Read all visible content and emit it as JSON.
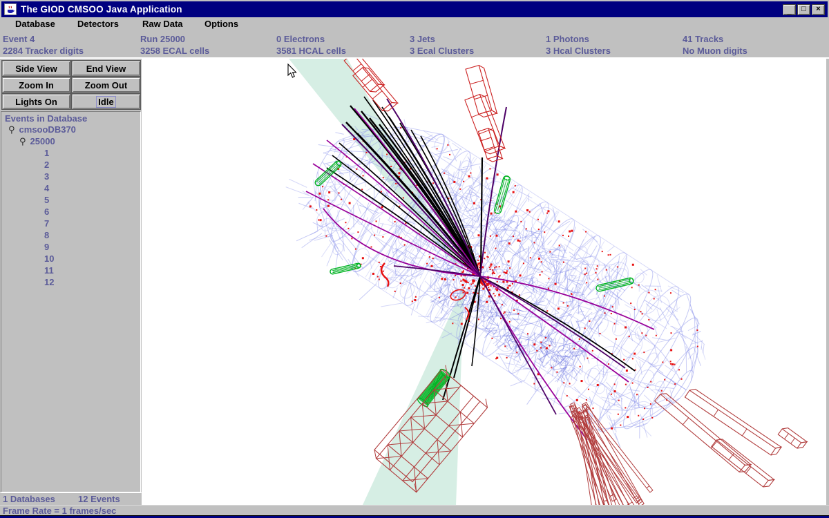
{
  "window": {
    "title": "The GIOD CMSOO Java Application",
    "controls": {
      "minimize": "_",
      "maximize": "□",
      "close": "×"
    }
  },
  "menu": {
    "items": [
      {
        "label": "Database"
      },
      {
        "label": "Detectors"
      },
      {
        "label": "Raw Data"
      },
      {
        "label": "Options"
      }
    ]
  },
  "infobar": {
    "columns": [
      {
        "top": "Event 4",
        "bottom": "2284 Tracker digits"
      },
      {
        "top": "Run 25000",
        "bottom": "3258 ECAL cells"
      },
      {
        "top": "0 Electrons",
        "bottom": "3581 HCAL cells"
      },
      {
        "top": "3 Jets",
        "bottom": "3 Ecal Clusters"
      },
      {
        "top": "1 Photons",
        "bottom": "3 Hcal Clusters"
      },
      {
        "top": "41 Tracks",
        "bottom": "No Muon digits"
      }
    ]
  },
  "toolbar": {
    "buttons": [
      {
        "label": "Side View"
      },
      {
        "label": "End View"
      },
      {
        "label": "Zoom In"
      },
      {
        "label": "Zoom Out"
      },
      {
        "label": "Lights On"
      },
      {
        "label": "Idle"
      }
    ]
  },
  "tree": {
    "header": "Events in Database",
    "node_icon": "⚲",
    "database": "cmsooDB370",
    "run": "25000",
    "events": [
      "1",
      "2",
      "3",
      "4",
      "5",
      "6",
      "7",
      "8",
      "9",
      "10",
      "11",
      "12"
    ]
  },
  "left_status": {
    "databases": "1 Databases",
    "events": "12 Events"
  },
  "status_bar": {
    "frame_rate": "Frame Rate = 1 frames/sec"
  },
  "colors": {
    "titlebar": "#000080",
    "titlebar_text": "#ffffff",
    "chrome": "#c0c0c0",
    "label_text": "#5b5b99",
    "canvas_bg": "#ffffff",
    "wire_blue": "#8b93ea",
    "digit_red": "#e81111",
    "track_black": "#000000",
    "track_magenta": "#990099",
    "track_purple": "#4d0066",
    "cluster_green": "#00b322",
    "jet_cone": "#cceadd",
    "ecal_red": "#cc2222",
    "hcal_red": "#b13d3d"
  }
}
